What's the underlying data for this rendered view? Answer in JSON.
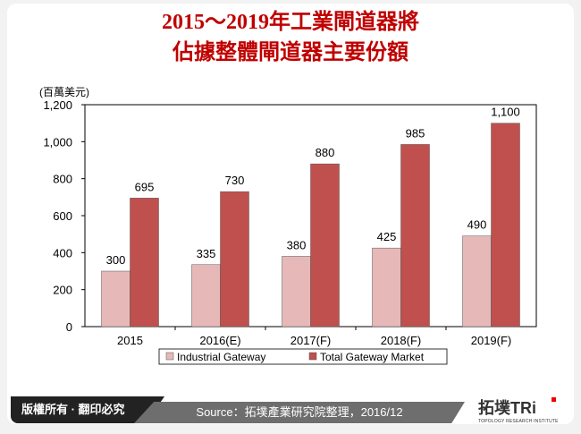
{
  "title_line1": "2015～2019年工業閘道器將",
  "title_line2": "佔據整體閘道器主要份額",
  "footer": {
    "copyright": "版權所有 · 翻印必究",
    "source": "Source：拓墣產業研究院整理，2016/12",
    "logo_cn": "拓墣TRi",
    "logo_en": "TOPOLOGY RESEARCH INSTITUTE"
  },
  "chart_data": {
    "type": "bar",
    "ylabel": "(百萬美元)",
    "categories": [
      "2015",
      "2016(E)",
      "2017(F)",
      "2018(F)",
      "2019(F)"
    ],
    "ylim": [
      0,
      1200
    ],
    "yticks": [
      "0",
      "200",
      "400",
      "600",
      "800",
      "1,000",
      "1,200"
    ],
    "series": [
      {
        "name": "Industrial Gateway",
        "color": "#e6b9b8",
        "values": [
          300,
          335,
          380,
          425,
          490
        ]
      },
      {
        "name": "Total Gateway Market",
        "color": "#c0504d",
        "values": [
          695,
          730,
          880,
          985,
          1100
        ]
      }
    ],
    "value_labels": [
      [
        "300",
        "335",
        "380",
        "425",
        "490"
      ],
      [
        "695",
        "730",
        "880",
        "985",
        "1,100"
      ]
    ],
    "legend": "bottom",
    "grid": false
  }
}
